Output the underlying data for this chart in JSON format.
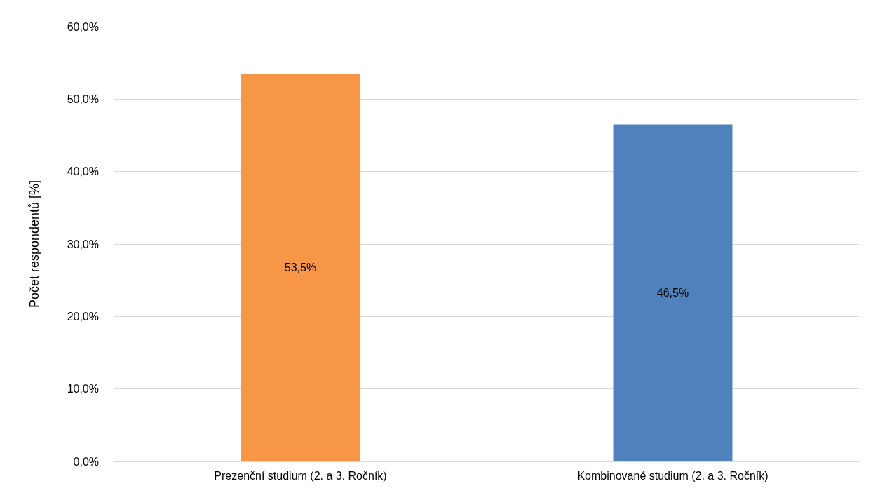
{
  "chart_data": {
    "type": "bar",
    "ylabel": "Počet respondentů [%]",
    "categories": [
      "Prezenční studium (2. a 3. Ročník)",
      "Kombinované studium (2. a 3. Ročník)"
    ],
    "values": [
      53.5,
      46.5
    ],
    "colors": [
      "#f79646",
      "#4f81bd"
    ],
    "value_labels": [
      "53,5%",
      "46,5%"
    ],
    "ylim": [
      0,
      60
    ],
    "yticks": [
      {
        "value": 0,
        "label": "0,0%"
      },
      {
        "value": 10,
        "label": "10,0%"
      },
      {
        "value": 20,
        "label": "20,0%"
      },
      {
        "value": 30,
        "label": "30,0%"
      },
      {
        "value": 40,
        "label": "40,0%"
      },
      {
        "value": 50,
        "label": "50,0%"
      },
      {
        "value": 60,
        "label": "60,0%"
      }
    ],
    "grid": "y"
  }
}
